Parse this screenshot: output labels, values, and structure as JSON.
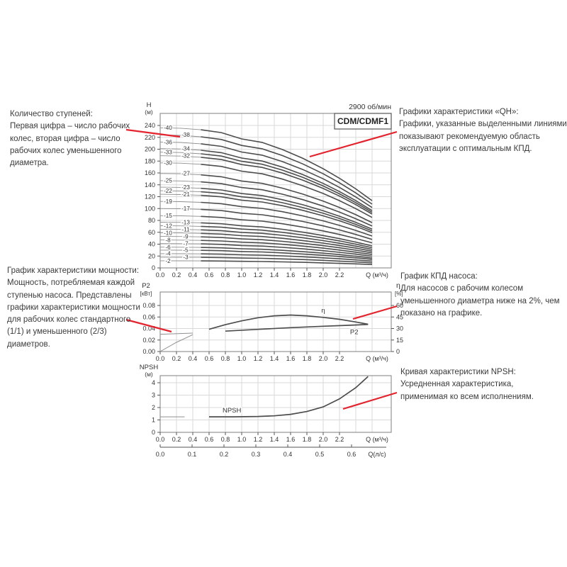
{
  "figure": {
    "rpm": "2900 об/мин",
    "model": "CDM/CDMF1"
  },
  "colors": {
    "accent_red": "#e3242e",
    "curve": "#4d4d4d",
    "curve_light": "#8f8f8f",
    "grid": "#d9d9d9",
    "frame": "#7f7f7f",
    "tick": "#555555",
    "text": "#3b3b3b"
  },
  "annotations": {
    "left": [
      {
        "title": "Количество ступеней:",
        "body": "Первая цифра – число рабочих колес, вторая цифра – число рабочих колес уменьшенного диаметра."
      },
      {
        "title": "График характеристики мощности:",
        "body": "Мощность, потребляемая каждой ступенью насоса. Представлены графики характеристики мощности для рабочих колес стандартного (1/1) и уменьшенного (2/3) диаметров."
      }
    ],
    "right": [
      {
        "title": "Графики характеристики «QH»:",
        "body": "Графики, указанные выделенными линиями, показывают рекомендуемую область эксплуатации с оптимальным КПД."
      },
      {
        "title": "График КПД насоса:",
        "body": "Для насосов с рабочим колесом уменьшенного диаметра ниже на 2%, чем показано на графике."
      },
      {
        "title": "Кривая характеристики NPSH:",
        "body": "Усредненная характеристика, применимая ко всем исполнениям."
      }
    ]
  },
  "chart_data": [
    {
      "id": "qh",
      "type": "line",
      "title": "CDM/CDMF1",
      "rpm": "2900 об/мин",
      "xlabel": "Q (м³/ч)",
      "ylabel": "H",
      "ylabel_unit": "(м)",
      "xticks": [
        "0.0",
        "0.2",
        "0.4",
        "0.6",
        "0.8",
        "1.0",
        "1.2",
        "1.4",
        "1.6",
        "1.8",
        "2.0",
        "2.2"
      ],
      "yticks": [
        0,
        20,
        40,
        60,
        80,
        100,
        120,
        140,
        160,
        180,
        200,
        220,
        240
      ],
      "xlim": [
        0,
        2.84
      ],
      "ylim": [
        0,
        260
      ],
      "grid": true,
      "bold_from": 0.5,
      "curve_q_end": 2.6,
      "shape": {
        "x": [
          0,
          0.25,
          0.5,
          0.75,
          1.0,
          1.25,
          1.5,
          1.75,
          2.0,
          2.2,
          2.4,
          2.6
        ],
        "f": [
          1.0,
          0.997,
          0.986,
          0.966,
          0.921,
          0.896,
          0.845,
          0.782,
          0.708,
          0.64,
          0.564,
          0.48
        ]
      },
      "stages": [
        {
          "label": "-40",
          "h0": 236,
          "col": 1
        },
        {
          "label": "-38",
          "h0": 224,
          "col": 2
        },
        {
          "label": "-36",
          "h0": 212,
          "col": 1
        },
        {
          "label": "-34",
          "h0": 201,
          "col": 2
        },
        {
          "label": "-33",
          "h0": 195,
          "col": 1
        },
        {
          "label": "-32",
          "h0": 189,
          "col": 2
        },
        {
          "label": "-30",
          "h0": 177,
          "col": 1
        },
        {
          "label": "-27",
          "h0": 159,
          "col": 2
        },
        {
          "label": "-25",
          "h0": 147,
          "col": 1
        },
        {
          "label": "-23",
          "h0": 136,
          "col": 2
        },
        {
          "label": "-22",
          "h0": 130,
          "col": 1
        },
        {
          "label": "-21",
          "h0": 124,
          "col": 2
        },
        {
          "label": "-19",
          "h0": 112,
          "col": 1
        },
        {
          "label": "-17",
          "h0": 100,
          "col": 2
        },
        {
          "label": "-15",
          "h0": 88,
          "col": 1
        },
        {
          "label": "-13",
          "h0": 77,
          "col": 2
        },
        {
          "label": "-12",
          "h0": 71,
          "col": 1
        },
        {
          "label": "-11",
          "h0": 65,
          "col": 2
        },
        {
          "label": "-10",
          "h0": 59,
          "col": 1
        },
        {
          "label": "-9",
          "h0": 53,
          "col": 2
        },
        {
          "label": "-8",
          "h0": 47,
          "col": 1
        },
        {
          "label": "-7",
          "h0": 41,
          "col": 2
        },
        {
          "label": "-6",
          "h0": 35,
          "col": 1
        },
        {
          "label": "-5",
          "h0": 30,
          "col": 2
        },
        {
          "label": "-4",
          "h0": 24,
          "col": 1
        },
        {
          "label": "-3",
          "h0": 18,
          "col": 2
        },
        {
          "label": "-2",
          "h0": 12,
          "col": 1
        }
      ]
    },
    {
      "id": "power-efficiency",
      "type": "line",
      "xlabel": "Q (м³/ч)",
      "ylabel_left": "P2",
      "ylabel_left_unit": "[кВт]",
      "ylabel_right": "η",
      "ylabel_right_unit": "[%]",
      "xticks": [
        "0.0",
        "0.2",
        "0.4",
        "0.6",
        "0.8",
        "1.0",
        "1.2",
        "1.4",
        "1.6",
        "1.8",
        "2.0",
        "2.2"
      ],
      "yticks_left": [
        "0.00",
        "0.02",
        "0.04",
        "0.06",
        "0.08"
      ],
      "yticks_right": [
        0,
        15,
        30,
        45,
        60
      ],
      "ylim_left": [
        0,
        0.09
      ],
      "ylim_right": [
        0,
        67.5
      ],
      "grid": true,
      "bold_from": 0.5,
      "series": [
        {
          "name": "η",
          "axis": "right",
          "x": [
            0,
            0.2,
            0.4,
            0.6,
            0.8,
            1.0,
            1.2,
            1.4,
            1.6,
            1.8,
            2.0,
            2.2,
            2.4,
            2.55
          ],
          "y": [
            0,
            12,
            22,
            29,
            35,
            40,
            44,
            46.5,
            47.5,
            46.5,
            44.5,
            42,
            38.5,
            35.5
          ],
          "label": "η",
          "label_q": 2.0,
          "label_dy": -7
        },
        {
          "name": "P2",
          "axis": "left",
          "x": [
            0,
            0.4,
            0.8,
            1.2,
            1.6,
            2.0,
            2.3,
            2.55
          ],
          "y": [
            0.03,
            0.032,
            0.0355,
            0.0385,
            0.0415,
            0.044,
            0.0455,
            0.047
          ],
          "label": "P2",
          "label_q": 2.38,
          "label_dy": 13
        }
      ]
    },
    {
      "id": "npsh",
      "type": "line",
      "xlabel": "Q (м³/ч)",
      "xlabel2": "Q(л/с)",
      "ylabel": "NPSH",
      "ylabel_unit": "(м)",
      "xticks": [
        "0.0",
        "0.2",
        "0.4",
        "0.6",
        "0.8",
        "1.0",
        "1.2",
        "1.4",
        "1.6",
        "1.8",
        "2.0",
        "2.2"
      ],
      "xticks2": [
        "0.0",
        "0.1",
        "0.2",
        "0.3",
        "0.4",
        "0.5",
        "0.6"
      ],
      "yticks": [
        0,
        1,
        2,
        3,
        4
      ],
      "ylim": [
        0,
        4.6
      ],
      "grid": true,
      "bold_from": 0.5,
      "series": [
        {
          "name": "NPSH",
          "x": [
            0,
            0.3,
            0.6,
            0.9,
            1.2,
            1.4,
            1.6,
            1.8,
            2.0,
            2.2,
            2.4,
            2.55
          ],
          "y": [
            1.25,
            1.25,
            1.25,
            1.25,
            1.28,
            1.33,
            1.45,
            1.68,
            2.05,
            2.7,
            3.6,
            4.5
          ],
          "label": "NPSH",
          "label_q": 0.88,
          "label_dy": -6
        }
      ]
    }
  ]
}
